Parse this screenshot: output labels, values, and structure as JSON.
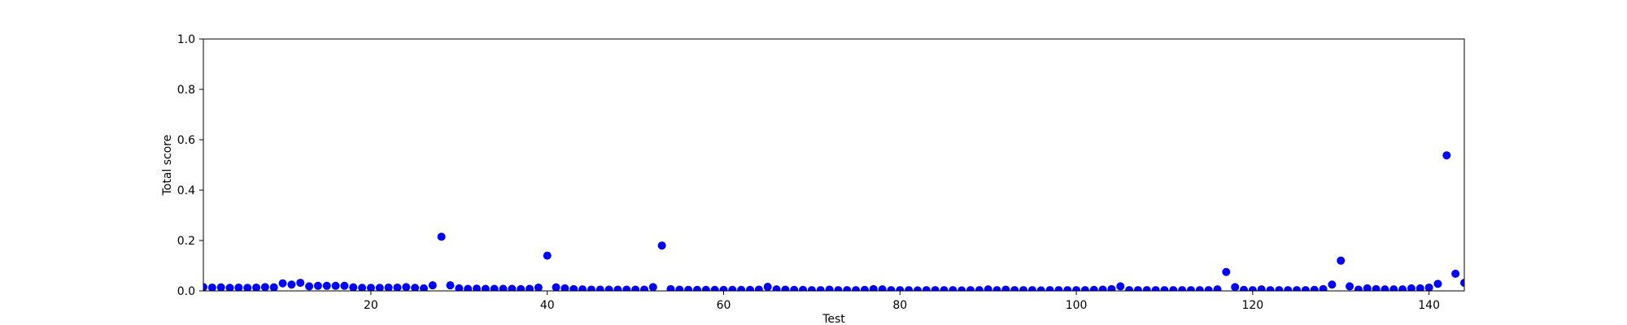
{
  "chart_data": {
    "type": "scatter",
    "title": "",
    "xlabel": "Test",
    "ylabel": "Total score",
    "xlim": [
      1,
      144
    ],
    "ylim": [
      0,
      1.0
    ],
    "xticks": [
      20,
      40,
      60,
      80,
      100,
      120,
      140
    ],
    "yticks": [
      0.0,
      0.2,
      0.4,
      0.6,
      0.8,
      1.0
    ],
    "ytick_labels": [
      "0.0",
      "0.2",
      "0.4",
      "0.6",
      "0.8",
      "1.0"
    ],
    "grid": false,
    "marker_color": "#0000ff",
    "x": [
      1,
      2,
      3,
      4,
      5,
      6,
      7,
      8,
      9,
      10,
      11,
      12,
      13,
      14,
      15,
      16,
      17,
      18,
      19,
      20,
      21,
      22,
      23,
      24,
      25,
      26,
      27,
      28,
      29,
      30,
      31,
      32,
      33,
      34,
      35,
      36,
      37,
      38,
      39,
      40,
      41,
      42,
      43,
      44,
      45,
      46,
      47,
      48,
      49,
      50,
      51,
      52,
      53,
      54,
      55,
      56,
      57,
      58,
      59,
      60,
      61,
      62,
      63,
      64,
      65,
      66,
      67,
      68,
      69,
      70,
      71,
      72,
      73,
      74,
      75,
      76,
      77,
      78,
      79,
      80,
      81,
      82,
      83,
      84,
      85,
      86,
      87,
      88,
      89,
      90,
      91,
      92,
      93,
      94,
      95,
      96,
      97,
      98,
      99,
      100,
      101,
      102,
      103,
      104,
      105,
      106,
      107,
      108,
      109,
      110,
      111,
      112,
      113,
      114,
      115,
      116,
      117,
      118,
      119,
      120,
      121,
      122,
      123,
      124,
      125,
      126,
      127,
      128,
      129,
      130,
      131,
      132,
      133,
      134,
      135,
      136,
      137,
      138,
      139,
      140,
      141,
      142,
      143,
      144
    ],
    "y": [
      0.015,
      0.013,
      0.014,
      0.012,
      0.013,
      0.012,
      0.013,
      0.015,
      0.014,
      0.03,
      0.025,
      0.032,
      0.018,
      0.02,
      0.02,
      0.02,
      0.02,
      0.014,
      0.012,
      0.012,
      0.012,
      0.013,
      0.013,
      0.015,
      0.012,
      0.01,
      0.022,
      0.215,
      0.022,
      0.01,
      0.008,
      0.009,
      0.008,
      0.008,
      0.008,
      0.008,
      0.007,
      0.008,
      0.013,
      0.14,
      0.014,
      0.01,
      0.007,
      0.006,
      0.005,
      0.005,
      0.005,
      0.005,
      0.005,
      0.005,
      0.005,
      0.015,
      0.18,
      0.007,
      0.005,
      0.004,
      0.004,
      0.004,
      0.004,
      0.004,
      0.004,
      0.004,
      0.004,
      0.005,
      0.016,
      0.006,
      0.005,
      0.004,
      0.004,
      0.003,
      0.003,
      0.005,
      0.003,
      0.003,
      0.003,
      0.004,
      0.007,
      0.006,
      0.003,
      0.003,
      0.003,
      0.002,
      0.003,
      0.003,
      0.003,
      0.003,
      0.002,
      0.003,
      0.003,
      0.006,
      0.003,
      0.005,
      0.003,
      0.003,
      0.003,
      0.002,
      0.003,
      0.003,
      0.003,
      0.003,
      0.003,
      0.004,
      0.005,
      0.007,
      0.018,
      0.003,
      0.003,
      0.003,
      0.003,
      0.003,
      0.003,
      0.003,
      0.003,
      0.003,
      0.003,
      0.006,
      0.075,
      0.015,
      0.004,
      0.003,
      0.006,
      0.003,
      0.003,
      0.003,
      0.003,
      0.003,
      0.004,
      0.007,
      0.025,
      0.12,
      0.018,
      0.005,
      0.01,
      0.007,
      0.006,
      0.006,
      0.006,
      0.01,
      0.01,
      0.013,
      0.028,
      0.538,
      0.068,
      0.032
    ]
  }
}
